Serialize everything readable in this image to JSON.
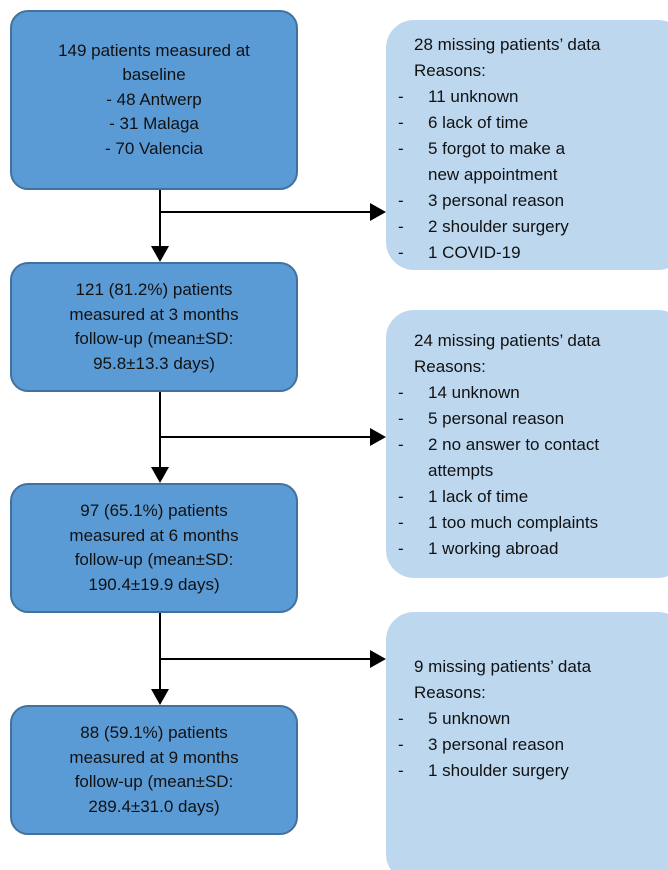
{
  "nodes": [
    {
      "lines": [
        "149 patients measured at",
        "baseline",
        "- 48 Antwerp",
        "- 31 Malaga",
        "- 70 Valencia"
      ]
    },
    {
      "lines": [
        "121 (81.2%) patients",
        "measured at 3 months",
        "follow-up (mean±SD:",
        "95.8±13.3 days)"
      ]
    },
    {
      "lines": [
        "97 (65.1%) patients",
        "measured at 6 months",
        "follow-up (mean±SD:",
        "190.4±19.9 days)"
      ]
    },
    {
      "lines": [
        "88 (59.1%) patients",
        "measured at 9 months",
        "follow-up (mean±SD:",
        "289.4±31.0 days)"
      ]
    }
  ],
  "bullet": "-",
  "missing": [
    {
      "title": "28 missing patients’ data",
      "reasons_label": "Reasons:",
      "reasons": [
        [
          "11 unknown"
        ],
        [
          "6 lack of time"
        ],
        [
          "5 forgot to make a",
          "new appointment"
        ],
        [
          "3 personal reason"
        ],
        [
          "2 shoulder surgery"
        ],
        [
          "1 COVID-19"
        ]
      ]
    },
    {
      "title": "24 missing patients’ data",
      "reasons_label": "Reasons:",
      "reasons": [
        [
          "14 unknown"
        ],
        [
          "5 personal reason"
        ],
        [
          "2 no answer to contact",
          "attempts"
        ],
        [
          "1 lack of time"
        ],
        [
          "1 too much complaints"
        ],
        [
          "1 working abroad"
        ]
      ]
    },
    {
      "title": "9 missing patients’ data",
      "reasons_label": "Reasons:",
      "reasons": [
        [
          "5 unknown"
        ],
        [
          "3 personal reason"
        ],
        [
          "1 shoulder surgery"
        ]
      ]
    }
  ]
}
